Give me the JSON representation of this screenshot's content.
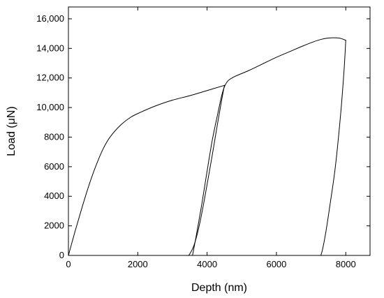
{
  "chart_data": {
    "type": "line",
    "title": "",
    "xlabel": "Depth (nm)",
    "ylabel": "Load (μN)",
    "xlim": [
      0,
      8700
    ],
    "ylim": [
      0,
      16800
    ],
    "xticks": [
      0,
      2000,
      4000,
      6000,
      8000
    ],
    "xtick_labels": [
      "0",
      "2000",
      "4000",
      "6000",
      "8000"
    ],
    "yticks": [
      0,
      2000,
      4000,
      6000,
      8000,
      10000,
      12000,
      14000,
      16000
    ],
    "ytick_labels": [
      "0",
      "2000",
      "4000",
      "6000",
      "8000",
      "10,000",
      "12,000",
      "14,000",
      "16,000"
    ],
    "grid": false,
    "legend": "none",
    "series": [
      {
        "x": [
          0,
          200,
          400,
          600,
          800,
          1000,
          1200,
          1500,
          1800,
          2100,
          2500,
          3000,
          3500,
          4000,
          4500
        ],
        "y": [
          0,
          1700,
          3300,
          4800,
          6100,
          7200,
          8000,
          8800,
          9350,
          9700,
          10100,
          10500,
          10800,
          11150,
          11500
        ]
      },
      {
        "x": [
          4500,
          4420,
          4300,
          4150,
          4000,
          3900,
          3800,
          3700,
          3600,
          3500,
          3460
        ],
        "y": [
          11500,
          10500,
          8900,
          6800,
          4800,
          3500,
          2300,
          1300,
          550,
          100,
          0
        ]
      },
      {
        "x": [
          3580,
          3700,
          3850,
          4000,
          4150,
          4300,
          4420,
          4500,
          4600,
          4800,
          5200,
          5600,
          6000,
          6400,
          6800,
          7200,
          7500,
          7800,
          8000
        ],
        "y": [
          0,
          1500,
          3500,
          5700,
          7800,
          9500,
          10800,
          11400,
          11800,
          12100,
          12500,
          12950,
          13400,
          13800,
          14200,
          14550,
          14700,
          14700,
          14550
        ]
      },
      {
        "x": [
          8000,
          7950,
          7850,
          7700,
          7550,
          7420,
          7330,
          7280
        ],
        "y": [
          14550,
          12500,
          9500,
          6000,
          3500,
          1500,
          400,
          0
        ]
      }
    ]
  }
}
